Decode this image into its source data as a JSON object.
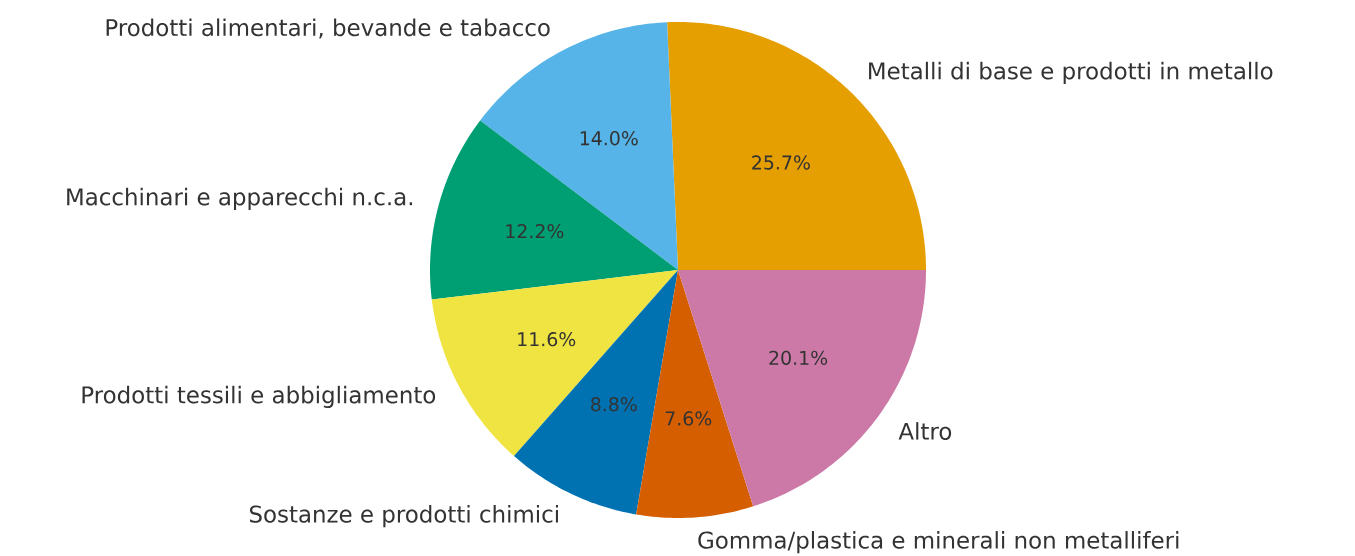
{
  "chart_data": {
    "type": "pie",
    "categories": [
      "Metalli di base e prodotti in metallo",
      "Prodotti alimentari, bevande e tabacco",
      "Macchinari e apparecchi n.c.a.",
      "Prodotti tessili e abbigliamento",
      "Sostanze e prodotti chimici",
      "Gomma/plastica e minerali non metalliferi",
      "Altro"
    ],
    "values": [
      25.7,
      14.0,
      12.2,
      11.6,
      8.8,
      7.6,
      20.1
    ],
    "value_labels": [
      "25.7%",
      "14.0%",
      "12.2%",
      "11.6%",
      "8.8%",
      "7.6%",
      "20.1%"
    ],
    "colors": [
      "#e69f00",
      "#56b4e9",
      "#009e73",
      "#f0e442",
      "#0072b2",
      "#d55e00",
      "#cc79a7"
    ]
  }
}
